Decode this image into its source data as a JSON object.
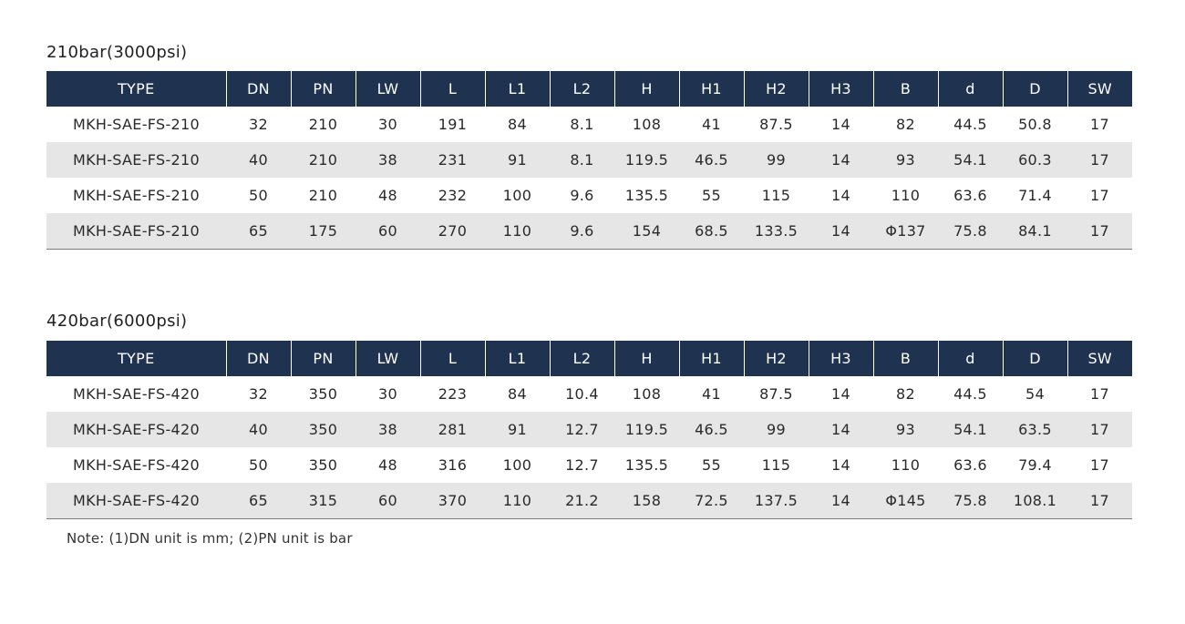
{
  "sections": [
    {
      "title": "210bar(3000psi)",
      "columns": [
        "TYPE",
        "DN",
        "PN",
        "LW",
        "L",
        "L1",
        "L2",
        "H",
        "H1",
        "H2",
        "H3",
        "B",
        "d",
        "D",
        "SW"
      ],
      "rows": [
        [
          "MKH-SAE-FS-210",
          "32",
          "210",
          "30",
          "191",
          "84",
          "8.1",
          "108",
          "41",
          "87.5",
          "14",
          "82",
          "44.5",
          "50.8",
          "17"
        ],
        [
          "MKH-SAE-FS-210",
          "40",
          "210",
          "38",
          "231",
          "91",
          "8.1",
          "119.5",
          "46.5",
          "99",
          "14",
          "93",
          "54.1",
          "60.3",
          "17"
        ],
        [
          "MKH-SAE-FS-210",
          "50",
          "210",
          "48",
          "232",
          "100",
          "9.6",
          "135.5",
          "55",
          "115",
          "14",
          "110",
          "63.6",
          "71.4",
          "17"
        ],
        [
          "MKH-SAE-FS-210",
          "65",
          "175",
          "60",
          "270",
          "110",
          "9.6",
          "154",
          "68.5",
          "133.5",
          "14",
          "Φ137",
          "75.8",
          "84.1",
          "17"
        ]
      ]
    },
    {
      "title": "420bar(6000psi)",
      "columns": [
        "TYPE",
        "DN",
        "PN",
        "LW",
        "L",
        "L1",
        "L2",
        "H",
        "H1",
        "H2",
        "H3",
        "B",
        "d",
        "D",
        "SW"
      ],
      "rows": [
        [
          "MKH-SAE-FS-420",
          "32",
          "350",
          "30",
          "223",
          "84",
          "10.4",
          "108",
          "41",
          "87.5",
          "14",
          "82",
          "44.5",
          "54",
          "17"
        ],
        [
          "MKH-SAE-FS-420",
          "40",
          "350",
          "38",
          "281",
          "91",
          "12.7",
          "119.5",
          "46.5",
          "99",
          "14",
          "93",
          "54.1",
          "63.5",
          "17"
        ],
        [
          "MKH-SAE-FS-420",
          "50",
          "350",
          "48",
          "316",
          "100",
          "12.7",
          "135.5",
          "55",
          "115",
          "14",
          "110",
          "63.6",
          "79.4",
          "17"
        ],
        [
          "MKH-SAE-FS-420",
          "65",
          "315",
          "60",
          "370",
          "110",
          "21.2",
          "158",
          "72.5",
          "137.5",
          "14",
          "Φ145",
          "75.8",
          "108.1",
          "17"
        ]
      ]
    }
  ],
  "note": "Note: (1)DN unit is mm; (2)PN unit is bar",
  "colors": {
    "header_bg": "#1f3250",
    "stripe_bg": "#e6e6e6"
  }
}
